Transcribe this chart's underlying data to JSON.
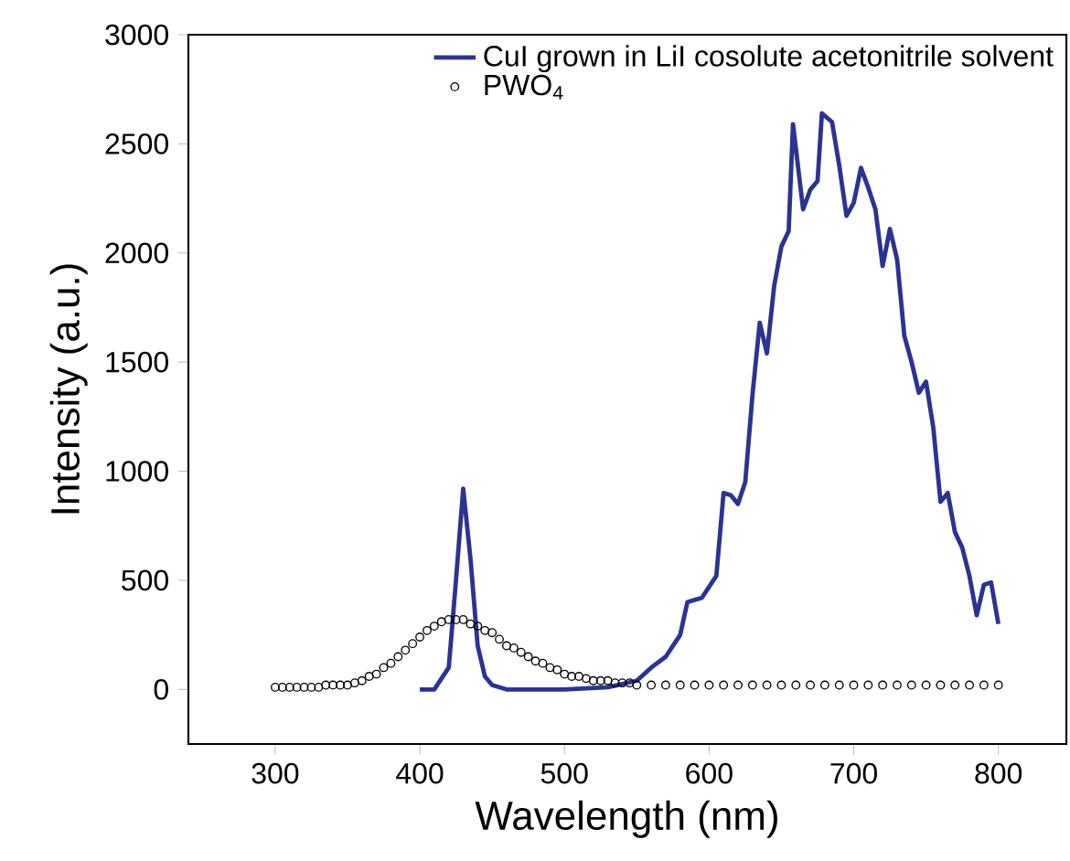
{
  "chart_data": {
    "type": "line",
    "xlabel": "Wavelength (nm)",
    "ylabel": "Intensity (a.u.)",
    "xlim": [
      240,
      847
    ],
    "ylim": [
      -250,
      3000
    ],
    "xticks": [
      300,
      400,
      500,
      600,
      700,
      800
    ],
    "yticks": [
      0,
      500,
      1000,
      1500,
      2000,
      2500,
      3000
    ],
    "grid": false,
    "legend": "top right",
    "series": [
      {
        "name": "CuI grown in LiI cosolute acetonitrile solvent",
        "color": "#2b3391",
        "marker": "none",
        "line_style": "solid",
        "x": [
          400,
          410,
          420,
          425,
          430,
          435,
          440,
          445,
          450,
          460,
          500,
          530,
          550,
          560,
          570,
          580,
          585,
          595,
          605,
          610,
          615,
          620,
          625,
          630,
          635,
          640,
          645,
          650,
          655,
          658,
          665,
          670,
          675,
          678,
          685,
          690,
          695,
          700,
          705,
          710,
          715,
          720,
          725,
          730,
          735,
          740,
          745,
          750,
          755,
          760,
          765,
          770,
          775,
          780,
          785,
          790,
          795,
          800
        ],
        "values": [
          0,
          0,
          100,
          500,
          920,
          600,
          200,
          60,
          20,
          0,
          0,
          10,
          40,
          100,
          150,
          250,
          400,
          420,
          520,
          900,
          890,
          850,
          950,
          1350,
          1680,
          1540,
          1850,
          2030,
          2100,
          2590,
          2200,
          2290,
          2330,
          2640,
          2600,
          2400,
          2170,
          2230,
          2390,
          2300,
          2200,
          1940,
          2110,
          1970,
          1620,
          1500,
          1360,
          1410,
          1200,
          860,
          900,
          720,
          650,
          520,
          340,
          480,
          490,
          300
        ]
      },
      {
        "name": "PWO$_{4}$",
        "type": "scatter",
        "color": "#000000",
        "marker": "circle",
        "x": [
          300,
          305,
          310,
          315,
          320,
          325,
          330,
          335,
          340,
          345,
          350,
          355,
          360,
          365,
          370,
          375,
          380,
          385,
          390,
          395,
          400,
          405,
          410,
          415,
          420,
          425,
          430,
          435,
          440,
          445,
          450,
          455,
          460,
          465,
          470,
          475,
          480,
          485,
          490,
          495,
          500,
          505,
          510,
          515,
          520,
          525,
          530,
          535,
          540,
          545,
          550,
          560,
          570,
          580,
          590,
          600,
          610,
          620,
          630,
          640,
          650,
          660,
          670,
          680,
          690,
          700,
          710,
          720,
          730,
          740,
          750,
          760,
          770,
          780,
          790,
          800
        ],
        "values": [
          10,
          10,
          10,
          10,
          10,
          10,
          10,
          20,
          20,
          20,
          20,
          30,
          40,
          60,
          70,
          100,
          120,
          150,
          180,
          210,
          240,
          270,
          290,
          310,
          320,
          320,
          320,
          300,
          290,
          270,
          260,
          230,
          200,
          190,
          170,
          150,
          130,
          120,
          100,
          90,
          70,
          60,
          60,
          50,
          40,
          40,
          40,
          30,
          30,
          30,
          20,
          20,
          20,
          20,
          20,
          20,
          20,
          20,
          20,
          20,
          20,
          20,
          20,
          20,
          20,
          20,
          20,
          20,
          20,
          20,
          20,
          20,
          20,
          20,
          20,
          20
        ]
      }
    ]
  }
}
